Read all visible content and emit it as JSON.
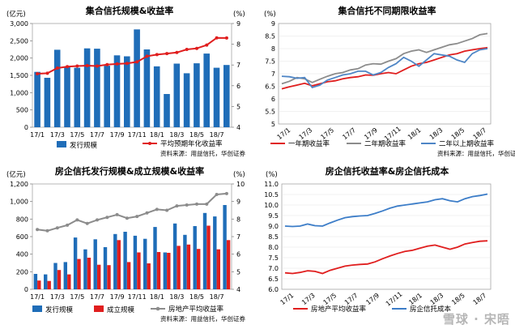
{
  "colors": {
    "bar_blue": "#1F6DB8",
    "bar_red": "#E01E1E",
    "line_red": "#E01E1E",
    "line_gray": "#8C8C8C",
    "line_blue": "#3C7DC8",
    "line_light_blue": "#4F86C6",
    "line_dark_gray": "#7B7B7B"
  },
  "watermark": "雪球 · 宋晤",
  "chart_data": [
    {
      "type": "bar",
      "title": "集合信托规模&收益率",
      "left_unit": "(亿元)",
      "right_unit": "(%)",
      "categories": [
        "17/1",
        "17/2",
        "17/3",
        "17/4",
        "17/5",
        "17/6",
        "17/7",
        "17/8",
        "17/9",
        "17/10",
        "17/11",
        "17/12",
        "18/1",
        "18/2",
        "18/3",
        "18/4",
        "18/5",
        "18/6",
        "18/7",
        "18/8"
      ],
      "x_tick_labels": [
        "17/1",
        "",
        "17/3",
        "",
        "17/5",
        "",
        "17/7",
        "",
        "17/9",
        "",
        "17/11",
        "",
        "18/1",
        "",
        "18/3",
        "",
        "18/5",
        "",
        "18/7",
        ""
      ],
      "ylim_left": [
        0,
        3000
      ],
      "yticks_left": [
        "0",
        "500",
        "1,000",
        "1,500",
        "2,000",
        "2,500",
        "3,000"
      ],
      "ylim_right": [
        4,
        9
      ],
      "yticks_right": [
        "4",
        "5",
        "6",
        "7",
        "8",
        "9"
      ],
      "series": [
        {
          "name": "发行规模",
          "type": "bar",
          "axis": "left",
          "color": "#1F6DB8",
          "values": [
            1600,
            1430,
            2240,
            1760,
            1720,
            2280,
            2270,
            1780,
            2080,
            2050,
            2830,
            2250,
            1760,
            960,
            1840,
            1560,
            1850,
            2130,
            1720,
            1800
          ]
        },
        {
          "name": "平均预期年化收益率",
          "type": "line",
          "axis": "right",
          "color": "#E01E1E",
          "values": [
            6.58,
            6.6,
            6.85,
            6.92,
            6.95,
            6.97,
            6.95,
            7.02,
            7.05,
            7.08,
            7.15,
            7.42,
            7.5,
            7.55,
            7.6,
            7.75,
            7.8,
            7.96,
            8.31,
            8.3
          ]
        }
      ],
      "source": "资料来源：用益信托，华创证券"
    },
    {
      "type": "line",
      "title": "集合信托不同期限收益率",
      "right_unit": "(%)",
      "x_tick_labels": [
        "17/1",
        "17/3",
        "17/5",
        "17/7",
        "17/9",
        "17/11",
        "18/1",
        "18/3",
        "18/5",
        "18/7"
      ],
      "ylim": [
        5,
        9
      ],
      "yticks": [
        "5",
        "5.5",
        "6",
        "6.5",
        "7",
        "7.5",
        "8",
        "8.5",
        "9"
      ],
      "series": [
        {
          "name": "一年期收益率",
          "color": "#E01E1E",
          "values": [
            6.4,
            6.48,
            6.55,
            6.62,
            6.52,
            6.6,
            6.68,
            6.72,
            6.8,
            6.85,
            6.88,
            6.95,
            6.94,
            7.0,
            7.05,
            7.0,
            7.15,
            7.3,
            7.4,
            7.45,
            7.55,
            7.65,
            7.75,
            7.8,
            7.9,
            7.95,
            8.0,
            8.04
          ]
        },
        {
          "name": "二年期收益率",
          "color": "#8C8C8C",
          "values": [
            6.6,
            6.7,
            6.85,
            6.8,
            6.65,
            6.78,
            6.9,
            7.0,
            7.05,
            7.15,
            7.2,
            7.35,
            7.4,
            7.38,
            7.5,
            7.6,
            7.8,
            7.9,
            7.95,
            7.85,
            7.95,
            8.05,
            8.15,
            8.2,
            8.3,
            8.4,
            8.55,
            8.6
          ]
        },
        {
          "name": "二年以上期收益率",
          "color": "#4F86C6",
          "values": [
            6.9,
            6.88,
            6.82,
            6.85,
            6.45,
            6.55,
            6.75,
            6.85,
            6.95,
            7.0,
            7.1,
            7.1,
            6.95,
            7.05,
            7.25,
            7.4,
            7.65,
            7.5,
            7.3,
            7.55,
            7.8,
            7.75,
            7.7,
            7.55,
            7.45,
            7.8,
            7.95,
            8.0
          ]
        }
      ],
      "source": "资料来源：用益信托，华创证券"
    },
    {
      "type": "bar",
      "title": "房企信托发行规模&成立规模&收益率",
      "left_unit": "(亿元)",
      "right_unit": "(%)",
      "categories": [
        "17/1",
        "17/2",
        "17/3",
        "17/4",
        "17/5",
        "17/6",
        "17/7",
        "17/8",
        "17/9",
        "17/10",
        "17/11",
        "17/12",
        "18/1",
        "18/2",
        "18/3",
        "18/4",
        "18/5",
        "18/6",
        "18/7",
        "18/8"
      ],
      "x_tick_labels": [
        "17/1",
        "",
        "17/3",
        "",
        "17/5",
        "",
        "17/7",
        "",
        "17/9",
        "",
        "17/11",
        "",
        "18/1",
        "",
        "18/3",
        "",
        "18/5",
        "",
        "18/7",
        ""
      ],
      "ylim_left": [
        0,
        1200
      ],
      "yticks_left": [
        "0",
        "200",
        "400",
        "600",
        "800",
        "1,000",
        "1,200"
      ],
      "ylim_right": [
        4,
        10
      ],
      "yticks_right": [
        "4",
        "5",
        "6",
        "7",
        "8",
        "9",
        "10"
      ],
      "series": [
        {
          "name": "发行规模",
          "type": "bar",
          "axis": "left",
          "color": "#1F6DB8",
          "values": [
            175,
            170,
            300,
            310,
            590,
            455,
            570,
            480,
            630,
            655,
            610,
            575,
            710,
            420,
            750,
            620,
            720,
            870,
            830,
            960
          ]
        },
        {
          "name": "成立规模",
          "type": "bar",
          "axis": "left",
          "color": "#E01E1E",
          "values": [
            100,
            95,
            220,
            170,
            345,
            360,
            280,
            275,
            560,
            310,
            420,
            295,
            425,
            415,
            495,
            510,
            460,
            725,
            455,
            560
          ]
        },
        {
          "name": "房地产平均收益率",
          "type": "line",
          "axis": "right",
          "color": "#8C8C8C",
          "values": [
            7.4,
            7.33,
            7.5,
            7.65,
            7.95,
            7.75,
            7.95,
            8.1,
            8.25,
            8.05,
            8.15,
            8.35,
            8.55,
            8.5,
            8.75,
            8.8,
            8.85,
            8.85,
            9.4,
            9.45
          ]
        }
      ],
      "source": "资料来源：用益信托，华创证券"
    },
    {
      "type": "line",
      "title": "房企信托收益率&房企信托成本",
      "right_unit": "(%)",
      "x_tick_labels": [
        "17/1",
        "17/3",
        "17/5",
        "17/7",
        "17/9",
        "17/11",
        "18/1",
        "18/3",
        "18/5",
        "18/7"
      ],
      "ylim": [
        6.0,
        11.0
      ],
      "yticks": [
        "6.0",
        "6.5",
        "7.0",
        "7.5",
        "8.0",
        "8.5",
        "9.0",
        "9.5",
        "10.0",
        "10.5",
        "11.0"
      ],
      "series": [
        {
          "name": "房地产平均收益率",
          "color": "#E01E1E",
          "values": [
            6.78,
            6.75,
            6.8,
            6.88,
            6.85,
            6.75,
            6.9,
            7.0,
            7.1,
            7.15,
            7.18,
            7.2,
            7.3,
            7.45,
            7.58,
            7.7,
            7.8,
            7.85,
            7.95,
            8.05,
            8.1,
            8.0,
            7.9,
            8.0,
            8.15,
            8.22,
            8.28,
            8.3
          ]
        },
        {
          "name": "房企信托成本",
          "color": "#3C7DC8",
          "values": [
            9.0,
            8.98,
            9.0,
            9.1,
            9.02,
            9.0,
            9.15,
            9.28,
            9.4,
            9.45,
            9.48,
            9.5,
            9.6,
            9.72,
            9.85,
            9.95,
            10.0,
            10.05,
            10.1,
            10.15,
            10.25,
            10.3,
            10.2,
            10.15,
            10.3,
            10.4,
            10.45,
            10.52
          ]
        }
      ]
    }
  ]
}
